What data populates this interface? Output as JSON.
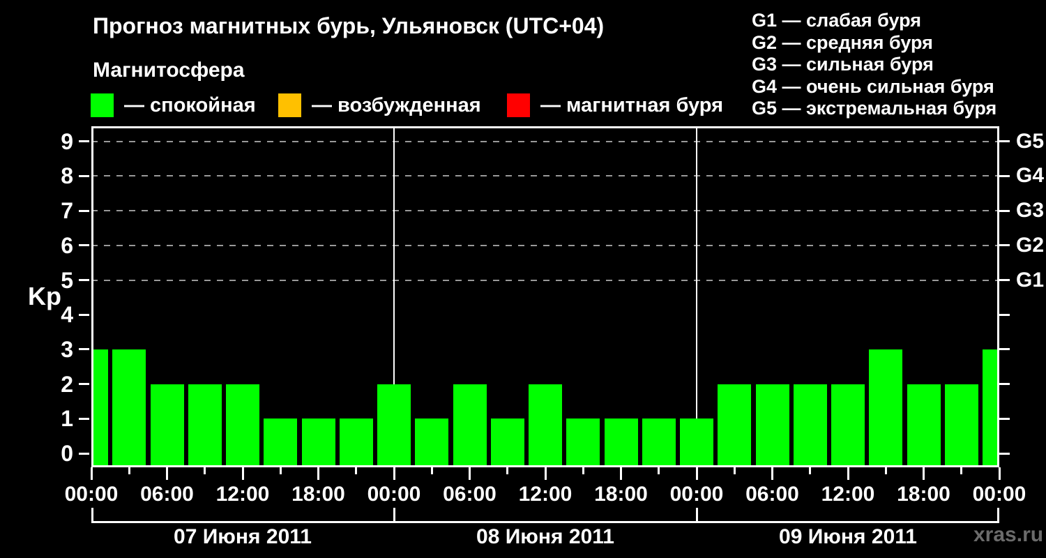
{
  "title": "Прогноз магнитных бурь, Ульяновск (UTC+04)",
  "subtitle": "Магнитосфера",
  "legend": {
    "items": [
      {
        "name": "quiet",
        "label": "— спокойная",
        "color": "#00ff00"
      },
      {
        "name": "excited",
        "label": "— возбужденная",
        "color": "#ffc000"
      },
      {
        "name": "storm",
        "label": "— магнитная буря",
        "color": "#ff0000"
      }
    ]
  },
  "storm_scale": {
    "lines": [
      "G1 — слабая буря",
      "G2 — средняя буря",
      "G3 — сильная буря",
      "G4 — очень сильная буря",
      "G5 — экстремальная буря"
    ]
  },
  "watermark": "xras.ru",
  "chart_data": {
    "type": "bar",
    "title": "Прогноз магнитных бурь, Ульяновск (UTC+04)",
    "ylabel": "Kp",
    "ylim": [
      -0.4,
      9.4
    ],
    "yticks": [
      "0",
      "1",
      "2",
      "3",
      "4",
      "5",
      "6",
      "7",
      "8",
      "9"
    ],
    "grid_levels": [
      5,
      6,
      7,
      8,
      9
    ],
    "right_axis_labels": [
      {
        "kp": 5,
        "label": "G1"
      },
      {
        "kp": 6,
        "label": "G2"
      },
      {
        "kp": 7,
        "label": "G3"
      },
      {
        "kp": 8,
        "label": "G4"
      },
      {
        "kp": 9,
        "label": "G5"
      }
    ],
    "x_tick_labels": [
      "00:00",
      "06:00",
      "12:00",
      "18:00",
      "00:00",
      "06:00",
      "12:00",
      "18:00",
      "00:00",
      "06:00",
      "12:00",
      "18:00",
      "00:00"
    ],
    "day_labels": [
      "07 Июня 2011",
      "08 Июня 2011",
      "09 Июня 2011"
    ],
    "bar_interval_hours": 3,
    "total_hours": 72,
    "kp_values": [
      3,
      3,
      2,
      2,
      2,
      1,
      1,
      1,
      2,
      1,
      2,
      1,
      2,
      1,
      1,
      1,
      1,
      2,
      2,
      2,
      2,
      3,
      2,
      2,
      3
    ],
    "bar_color": "#00ff00",
    "colors": {
      "quiet": "#00ff00",
      "excited": "#ffc000",
      "storm": "#ff0000",
      "grid": "#999999",
      "axis": "#ffffff",
      "background": "#000000",
      "watermark": "#6b6b6b"
    }
  }
}
